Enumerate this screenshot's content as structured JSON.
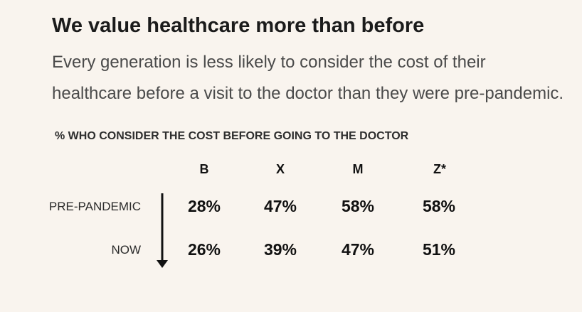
{
  "title": "We value healthcare more than before",
  "subtitle_line1": "Every generation is less likely to consider the cost of their",
  "subtitle_line2": "healthcare before a visit to the doctor than they were pre-pandemic.",
  "chart_data": {
    "type": "table",
    "title": "% WHO CONSIDER THE COST BEFORE GOING TO THE DOCTOR",
    "columns": [
      "B",
      "X",
      "M",
      "Z*"
    ],
    "rows": [
      {
        "label": "PRE-PANDEMIC",
        "values": [
          "28%",
          "47%",
          "58%",
          "58%"
        ]
      },
      {
        "label": "NOW",
        "values": [
          "26%",
          "39%",
          "47%",
          "51%"
        ]
      }
    ]
  }
}
